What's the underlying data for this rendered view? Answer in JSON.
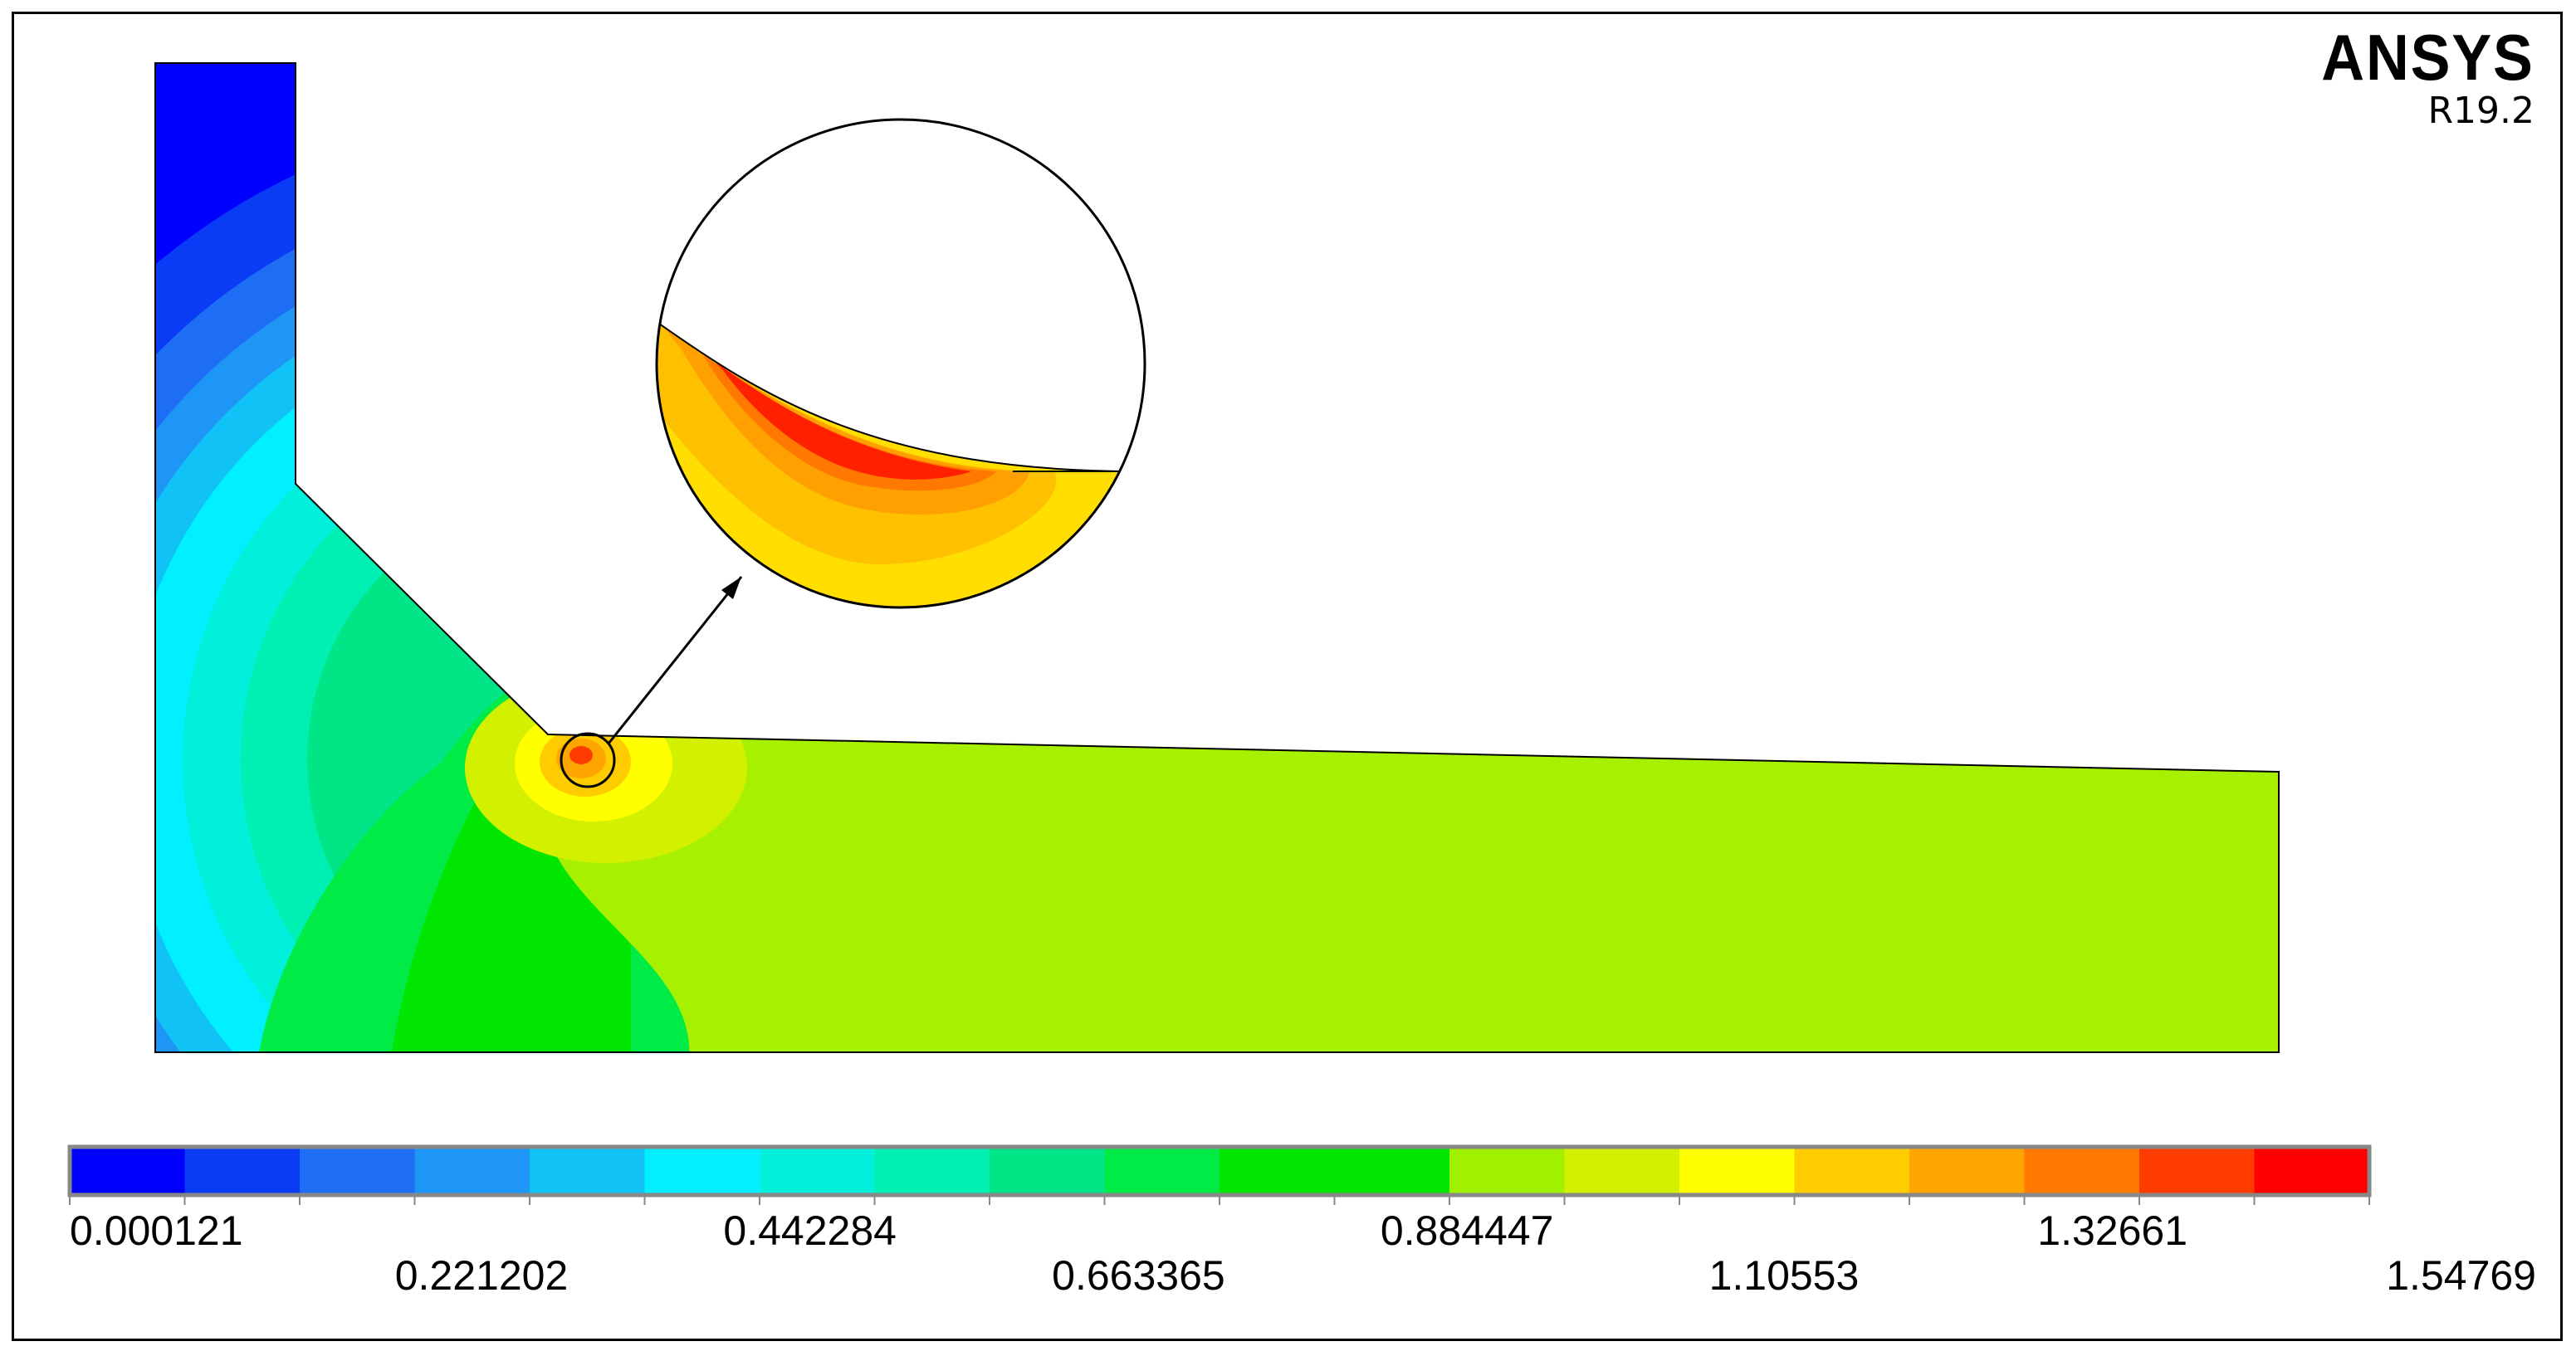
{
  "brand": {
    "name": "ANSYS",
    "version": "R19.2"
  },
  "contour_colors": [
    "#0000ff",
    "#0a3cf5",
    "#1e6ef5",
    "#1e96f5",
    "#10c2f5",
    "#00f0ff",
    "#00f0dc",
    "#00f0b4",
    "#00e687",
    "#00eb46",
    "#00e600",
    "#00e600",
    "#a0f000",
    "#d2f000",
    "#ffff00",
    "#ffcc00",
    "#ffa500",
    "#ff7800",
    "#ff3c00",
    "#ff0000"
  ],
  "legend": {
    "ticks": [
      "0.000121",
      "0.221202",
      "0.442284",
      "0.663365",
      "0.884447",
      "1.10553",
      "1.32661",
      "1.54769"
    ]
  },
  "colors": {
    "domain_main": "#a6f000",
    "zoom_yellow": "#ffde00"
  }
}
